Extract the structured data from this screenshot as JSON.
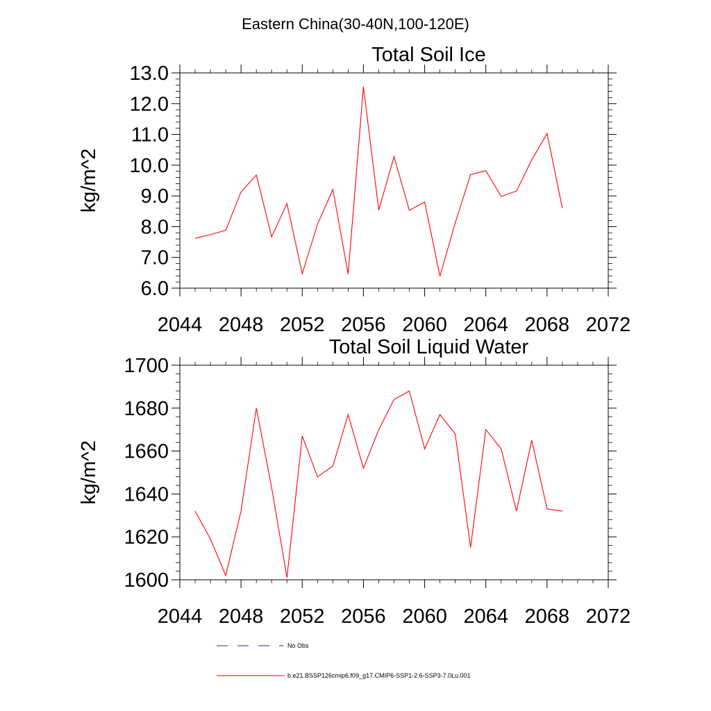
{
  "figure": {
    "suptitle": "Eastern China(30-40N,100-120E)"
  },
  "legend": {
    "placement": "bottom",
    "entries": [
      {
        "label": "No Obs",
        "color": "#1f2a8c",
        "style": "dashed"
      },
      {
        "label": "b.e21.BSSP126cmip6.f09_g17.CMIP6-SSP1-2.6-SSP3-7.0Lu.001",
        "color": "#ff0000",
        "style": "solid"
      }
    ]
  },
  "chart_data": [
    {
      "type": "line",
      "title": "Total Soil Ice",
      "xlabel": "",
      "ylabel": "kg/m^2",
      "xlim": [
        2044,
        2072
      ],
      "ylim": [
        6.0,
        13.0
      ],
      "xticks": [
        2044,
        2048,
        2052,
        2056,
        2060,
        2064,
        2068,
        2072
      ],
      "xtick_labels": [
        "2044",
        "2048",
        "2052",
        "2056",
        "2060",
        "2064",
        "2068",
        "2072"
      ],
      "yticks": [
        6,
        7,
        8,
        9,
        10,
        11,
        12,
        13
      ],
      "ytick_labels": [
        "6.0",
        "7.0",
        "8.0",
        "9.0",
        "10.0",
        "11.0",
        "12.0",
        "13.0"
      ],
      "grid": false,
      "x": [
        2045,
        2046,
        2047,
        2048,
        2049,
        2050,
        2051,
        2052,
        2053,
        2054,
        2055,
        2056,
        2057,
        2058,
        2059,
        2060,
        2061,
        2062,
        2063,
        2064,
        2065,
        2066,
        2067,
        2068,
        2069
      ],
      "series": [
        {
          "name": "b.e21.BSSP126cmip6.f09_g17.CMIP6-SSP1-2.6-SSP3-7.0Lu.001",
          "color": "#ff0000",
          "values": [
            7.62,
            7.74,
            7.88,
            9.13,
            9.68,
            7.67,
            8.75,
            6.47,
            8.08,
            9.21,
            6.46,
            12.55,
            8.54,
            10.28,
            8.53,
            8.8,
            6.39,
            8.12,
            9.69,
            9.82,
            8.98,
            9.16,
            10.17,
            11.03,
            8.6
          ]
        }
      ]
    },
    {
      "type": "line",
      "title": "Total Soil Liquid Water",
      "xlabel": "",
      "ylabel": "kg/m^2",
      "xlim": [
        2044,
        2072
      ],
      "ylim": [
        1600,
        1700
      ],
      "xticks": [
        2044,
        2048,
        2052,
        2056,
        2060,
        2064,
        2068,
        2072
      ],
      "xtick_labels": [
        "2044",
        "2048",
        "2052",
        "2056",
        "2060",
        "2064",
        "2068",
        "2072"
      ],
      "yticks": [
        1600,
        1620,
        1640,
        1660,
        1680,
        1700
      ],
      "ytick_labels": [
        "1600",
        "1620",
        "1640",
        "1660",
        "1680",
        "1700"
      ],
      "grid": false,
      "x": [
        2045,
        2046,
        2047,
        2048,
        2049,
        2050,
        2051,
        2052,
        2053,
        2054,
        2055,
        2056,
        2057,
        2058,
        2059,
        2060,
        2061,
        2062,
        2063,
        2064,
        2065,
        2066,
        2067,
        2068,
        2069
      ],
      "series": [
        {
          "name": "b.e21.BSSP126cmip6.f09_g17.CMIP6-SSP1-2.6-SSP3-7.0Lu.001",
          "color": "#ff0000",
          "values": [
            1632,
            1619,
            1602,
            1632,
            1680,
            1643,
            1601,
            1667,
            1648,
            1653,
            1677,
            1652,
            1670,
            1684,
            1688,
            1661,
            1677,
            1668,
            1615,
            1670,
            1661,
            1632,
            1665,
            1633,
            1632
          ]
        }
      ]
    }
  ]
}
